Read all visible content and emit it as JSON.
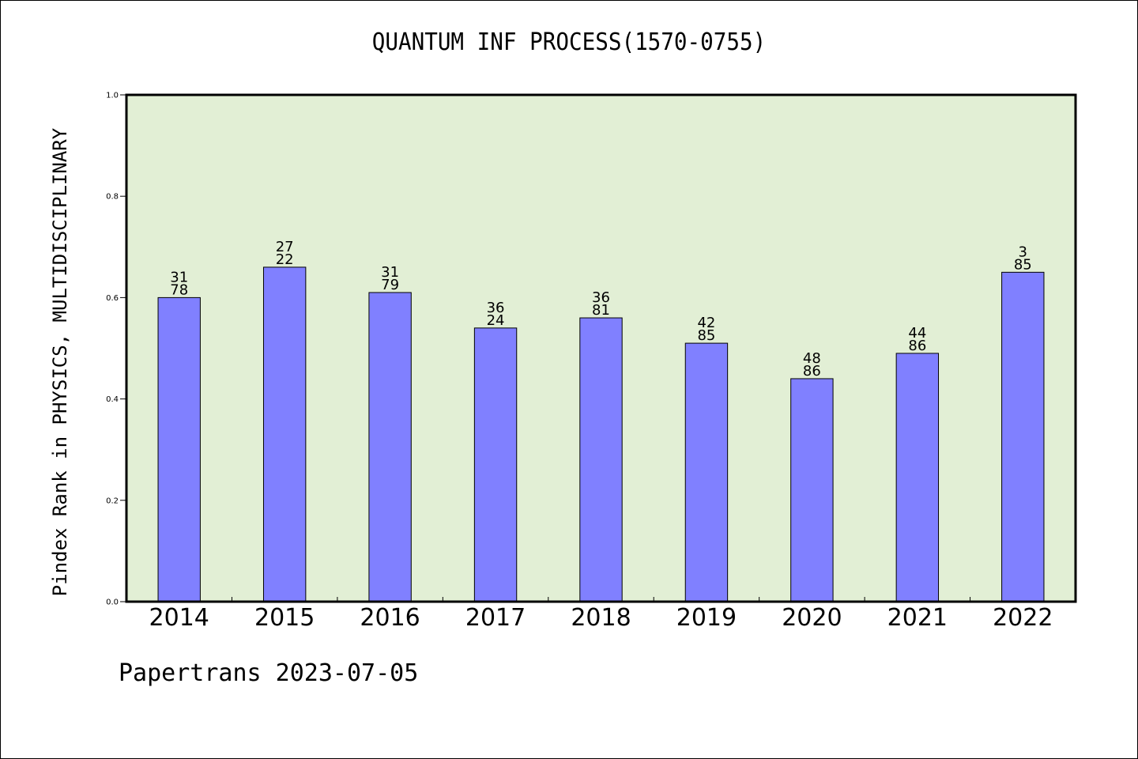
{
  "chart_data": {
    "type": "bar",
    "title": "QUANTUM INF PROCESS(1570-0755)",
    "ylabel": "Pindex Rank in PHYSICS, MULTIDISCIPLINARY",
    "xlabel": "",
    "footer": "Papertrans 2023-07-05",
    "categories": [
      "2014",
      "2015",
      "2016",
      "2017",
      "2018",
      "2019",
      "2020",
      "2021",
      "2022"
    ],
    "values": [
      0.6,
      0.66,
      0.61,
      0.54,
      0.56,
      0.51,
      0.44,
      0.49,
      0.65
    ],
    "bar_labels": [
      [
        "31",
        "78"
      ],
      [
        "27",
        "22"
      ],
      [
        "31",
        "79"
      ],
      [
        "36",
        "24"
      ],
      [
        "36",
        "81"
      ],
      [
        "42",
        "85"
      ],
      [
        "48",
        "86"
      ],
      [
        "44",
        "86"
      ],
      [
        "3",
        "85"
      ]
    ],
    "ylim": [
      0.0,
      1.0
    ],
    "yticks": [
      "0.0",
      "0.2",
      "0.4",
      "0.6",
      "0.8",
      "1.0"
    ],
    "grid": false,
    "colors": {
      "plot_background": "#e2efd5",
      "bar_fill": "#8080ff",
      "bar_stroke": "#000000"
    }
  }
}
